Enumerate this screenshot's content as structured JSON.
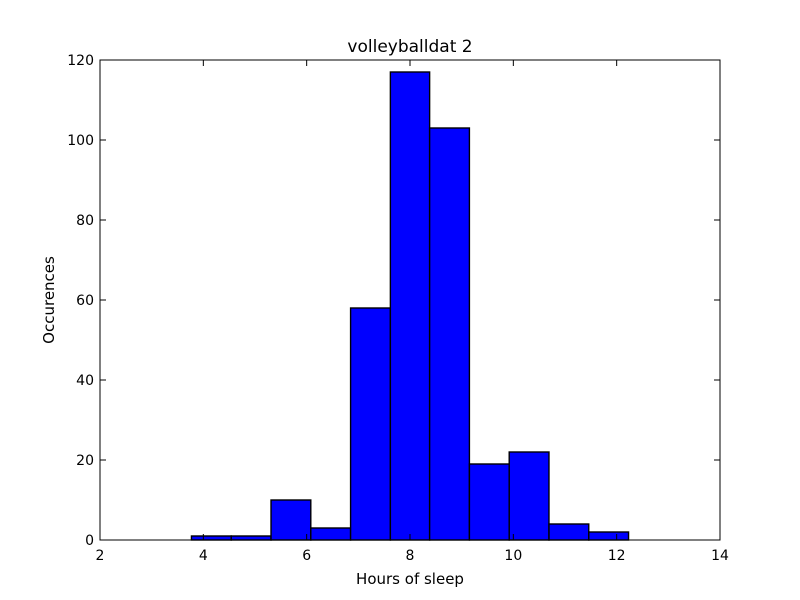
{
  "chart_data": {
    "type": "bar",
    "title": "volleyballdat 2",
    "xlabel": "Hours of sleep",
    "ylabel": "Occurences",
    "xlim": [
      2,
      14
    ],
    "ylim": [
      0,
      120
    ],
    "xticks": [
      "2",
      "4",
      "6",
      "8",
      "10",
      "12",
      "14"
    ],
    "yticks": [
      "0",
      "20",
      "40",
      "60",
      "80",
      "100",
      "120"
    ],
    "grid": false,
    "bar_color": "#0000ff",
    "bins": [
      {
        "start": 3.0,
        "end": 3.77,
        "count": 0
      },
      {
        "start": 3.77,
        "end": 4.54,
        "count": 1
      },
      {
        "start": 4.54,
        "end": 5.31,
        "count": 1
      },
      {
        "start": 5.31,
        "end": 6.08,
        "count": 10
      },
      {
        "start": 6.08,
        "end": 6.85,
        "count": 3
      },
      {
        "start": 6.85,
        "end": 7.62,
        "count": 58
      },
      {
        "start": 7.62,
        "end": 8.38,
        "count": 117
      },
      {
        "start": 8.38,
        "end": 9.15,
        "count": 103
      },
      {
        "start": 9.15,
        "end": 9.92,
        "count": 19
      },
      {
        "start": 9.92,
        "end": 10.69,
        "count": 22
      },
      {
        "start": 10.69,
        "end": 11.46,
        "count": 4
      },
      {
        "start": 11.46,
        "end": 12.23,
        "count": 2
      },
      {
        "start": 12.23,
        "end": 13.0,
        "count": 0
      }
    ]
  }
}
